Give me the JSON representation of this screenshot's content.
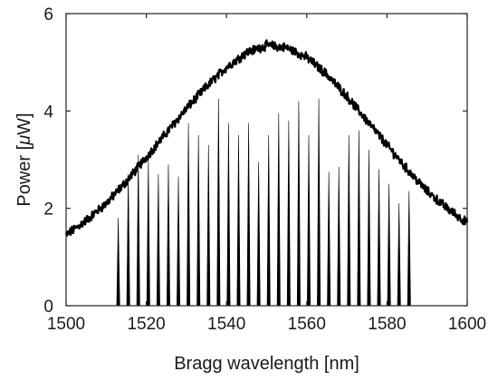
{
  "chart_data": {
    "type": "line",
    "title": "",
    "xlabel": "Bragg wavelength [nm]",
    "ylabel": "Power [",
    "ylabel_mu": "μ",
    "ylabel_unit": "W]",
    "xlim": [
      1500,
      1600
    ],
    "ylim": [
      0,
      6
    ],
    "xticks": [
      "1500",
      "1520",
      "1540",
      "1560",
      "1580",
      "1600"
    ],
    "yticks": [
      "0",
      "2",
      "4",
      "6"
    ],
    "grid": false,
    "legend": "none",
    "line_color": "#000000",
    "series": [
      {
        "kind": "envelope",
        "x": [
          1500,
          1505,
          1510,
          1515,
          1520,
          1525,
          1530,
          1535,
          1540,
          1545,
          1550,
          1555,
          1560,
          1565,
          1570,
          1575,
          1580,
          1585,
          1590,
          1595,
          1600
        ],
        "values": [
          1.45,
          1.75,
          2.1,
          2.55,
          3.05,
          3.55,
          4.05,
          4.5,
          4.9,
          5.2,
          5.35,
          5.3,
          5.1,
          4.75,
          4.3,
          3.8,
          3.3,
          2.8,
          2.35,
          2.0,
          1.7
        ]
      },
      {
        "kind": "peaks",
        "x": [
          1513.0,
          1515.5,
          1518.0,
          1520.5,
          1523.0,
          1525.5,
          1528.0,
          1530.5,
          1533.0,
          1535.5,
          1538.0,
          1540.5,
          1543.0,
          1545.5,
          1548.0,
          1550.5,
          1553.0,
          1555.5,
          1558.0,
          1560.5,
          1563.0,
          1565.5,
          1568.0,
          1570.5,
          1573.0,
          1575.5,
          1578.0,
          1580.5,
          1583.0,
          1585.5
        ],
        "values": [
          1.8,
          2.7,
          3.1,
          3.0,
          2.7,
          2.9,
          2.65,
          3.75,
          3.5,
          3.3,
          4.25,
          3.75,
          3.5,
          3.75,
          2.95,
          3.5,
          3.95,
          3.8,
          4.2,
          3.5,
          4.25,
          2.75,
          2.85,
          3.5,
          3.6,
          3.2,
          2.8,
          2.5,
          2.1,
          2.35
        ]
      }
    ]
  }
}
